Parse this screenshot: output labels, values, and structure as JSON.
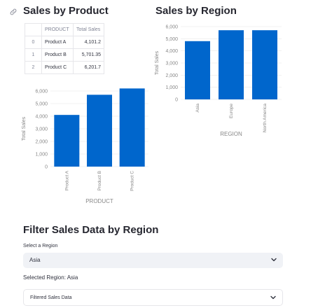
{
  "left": {
    "title": "Sales by Product",
    "table": {
      "columns": [
        "",
        "PRODUCT",
        "Total Sales"
      ],
      "rows": [
        {
          "index": "0",
          "product": "Product A",
          "sales": "4,101.2"
        },
        {
          "index": "1",
          "product": "Product B",
          "sales": "5,701.35"
        },
        {
          "index": "2",
          "product": "Product C",
          "sales": "6,201.7"
        }
      ]
    }
  },
  "right": {
    "title": "Sales by Region"
  },
  "filter": {
    "title": "Filter Sales Data by Region",
    "select_label": "Select a Region",
    "selected_value": "Asia",
    "selected_text": "Selected Region: Asia",
    "expander_label": "Filtered Sales Data"
  },
  "icons": {
    "anchor": "link-icon",
    "select": "chevron-down-icon",
    "expander": "chevron-down-icon"
  },
  "colors": {
    "bar": "#0066cc",
    "grid": "#e6e6e6",
    "axis_text": "#888888"
  },
  "chart_data": [
    {
      "type": "bar",
      "categories": [
        "Product A",
        "Product B",
        "Product C"
      ],
      "values": [
        4101.2,
        5701.35,
        6201.7
      ],
      "xlabel": "PRODUCT",
      "ylabel": "Total Sales",
      "ylim": [
        0,
        6000
      ],
      "yticks": [
        0,
        1000,
        2000,
        3000,
        4000,
        5000,
        6000
      ],
      "ytick_labels": [
        "0",
        "1,000",
        "2,000",
        "3,000",
        "4,000",
        "5,000",
        "6,000"
      ],
      "grid": true
    },
    {
      "type": "bar",
      "categories": [
        "Asia",
        "Europe",
        "North America"
      ],
      "values": [
        4801,
        5701,
        5701
      ],
      "xlabel": "REGION",
      "ylabel": "Total Sales",
      "ylim": [
        0,
        6000
      ],
      "yticks": [
        0,
        1000,
        2000,
        3000,
        4000,
        5000,
        6000
      ],
      "ytick_labels": [
        "0",
        "1,000",
        "2,000",
        "3,000",
        "4,000",
        "5,000",
        "6,000"
      ],
      "grid": true
    }
  ]
}
